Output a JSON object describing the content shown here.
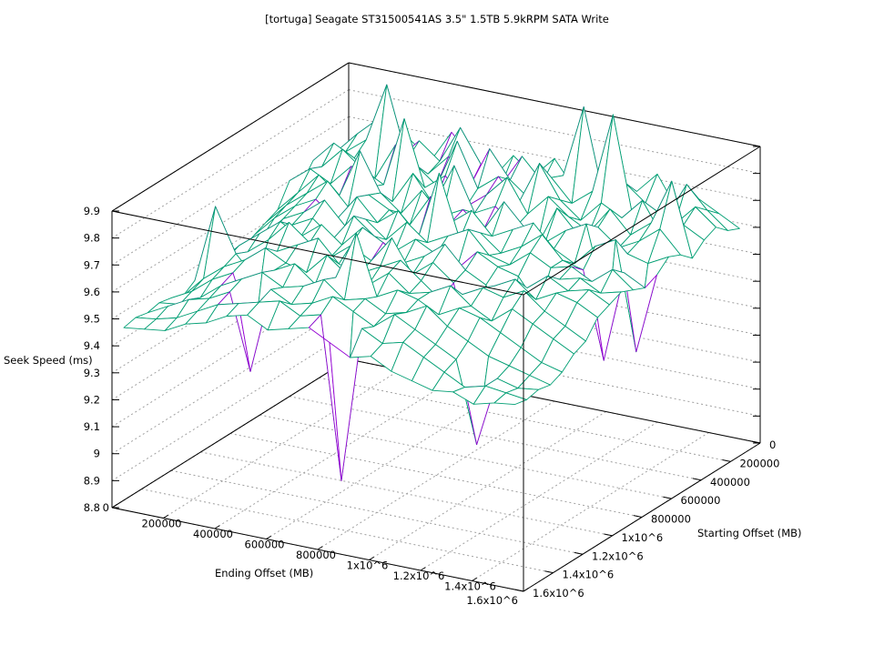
{
  "chart_data": {
    "type": "surface3d",
    "title": "[tortuga] Seagate ST31500541AS 3.5\" 1.5TB 5.9kRPM SATA Write",
    "xlabel": "Ending Offset (MB)",
    "ylabel": "Starting Offset (MB)",
    "zlabel": "Seek Speed (ms)",
    "xlim": [
      0,
      1600000
    ],
    "ylim": [
      0,
      1600000
    ],
    "zlim": [
      8.8,
      9.9
    ],
    "x_ticks": [
      "0",
      "200000",
      "400000",
      "600000",
      "800000",
      "1x10^6",
      "1.2x10^6",
      "1.4x10^6",
      "1.6x10^6"
    ],
    "y_ticks": [
      "0",
      "200000",
      "400000",
      "600000",
      "800000",
      "1x10^6",
      "1.2x10^6",
      "1.4x10^6",
      "1.6x10^6"
    ],
    "z_ticks": [
      "8.8",
      "8.9",
      "9",
      "9.1",
      "9.2",
      "9.3",
      "9.4",
      "9.5",
      "9.6",
      "9.7",
      "9.8",
      "9.9"
    ],
    "grid": true,
    "colors": {
      "surface_top": "#9400d3",
      "surface_bottom": "#009e73",
      "axis": "#000000",
      "grid": "#a0a0a0"
    },
    "x": [
      0,
      80000,
      160000,
      240000,
      320000,
      400000,
      480000,
      560000,
      640000,
      720000,
      800000,
      880000,
      960000,
      1040000,
      1120000,
      1200000,
      1280000,
      1360000,
      1440000,
      1520000
    ],
    "y": [
      0,
      80000,
      160000,
      240000,
      320000,
      400000,
      480000,
      560000,
      640000,
      720000,
      800000,
      880000,
      960000,
      1040000,
      1120000,
      1200000,
      1280000,
      1360000,
      1440000,
      1520000
    ],
    "z": [
      [
        9.55,
        9.62,
        9.58,
        9.66,
        9.6,
        9.72,
        9.64,
        9.58,
        9.68,
        9.62,
        9.7,
        9.6,
        9.66,
        9.58,
        9.64,
        9.72,
        9.6,
        9.66,
        9.62,
        9.58
      ],
      [
        9.6,
        9.68,
        9.75,
        9.62,
        9.7,
        9.64,
        9.78,
        9.66,
        9.6,
        9.72,
        9.64,
        9.68,
        9.95,
        9.62,
        9.7,
        9.64,
        9.6,
        9.74,
        9.66,
        9.6
      ],
      [
        9.58,
        9.64,
        9.7,
        9.92,
        9.66,
        9.62,
        9.7,
        9.6,
        9.76,
        9.66,
        9.6,
        9.7,
        9.62,
        9.68,
        9.98,
        9.6,
        9.66,
        9.62,
        9.7,
        9.64
      ],
      [
        9.62,
        9.7,
        9.66,
        9.6,
        9.74,
        9.68,
        9.62,
        9.8,
        9.64,
        9.7,
        9.62,
        9.78,
        9.66,
        9.6,
        9.68,
        9.64,
        9.72,
        9.6,
        9.66,
        9.62
      ],
      [
        9.56,
        9.64,
        9.72,
        9.66,
        9.62,
        9.88,
        9.64,
        9.7,
        9.6,
        9.66,
        9.74,
        9.62,
        9.7,
        9.64,
        9.6,
        9.7,
        9.62,
        9.68,
        9.85,
        9.58
      ],
      [
        9.6,
        9.66,
        9.62,
        9.7,
        9.64,
        9.6,
        9.72,
        9.62,
        9.78,
        9.62,
        9.66,
        9.6,
        9.54,
        9.7,
        9.62,
        9.66,
        9.6,
        9.64,
        9.7,
        9.62
      ],
      [
        9.52,
        9.6,
        9.68,
        9.62,
        9.8,
        9.66,
        9.6,
        9.7,
        9.62,
        9.66,
        9.6,
        9.72,
        9.64,
        9.6,
        9.66,
        9.7,
        9.4,
        9.62,
        9.6,
        9.64
      ],
      [
        9.5,
        9.58,
        9.64,
        9.7,
        9.62,
        9.68,
        9.64,
        9.6,
        9.72,
        9.64,
        9.7,
        9.62,
        9.66,
        9.7,
        9.62,
        9.58,
        9.66,
        9.7,
        9.3,
        9.6
      ],
      [
        9.48,
        9.56,
        9.62,
        9.66,
        9.6,
        9.7,
        9.62,
        9.68,
        9.6,
        9.85,
        9.62,
        9.66,
        9.6,
        9.64,
        9.7,
        9.62,
        9.6,
        9.28,
        9.62,
        9.58
      ],
      [
        9.46,
        9.52,
        9.6,
        9.64,
        9.7,
        9.62,
        9.66,
        9.6,
        9.68,
        9.62,
        9.66,
        9.7,
        9.62,
        9.6,
        9.66,
        9.62,
        9.64,
        9.6,
        9.66,
        9.6
      ],
      [
        9.45,
        9.5,
        9.58,
        9.62,
        9.66,
        9.6,
        9.7,
        9.64,
        9.6,
        9.66,
        9.62,
        9.58,
        9.66,
        9.62,
        9.6,
        9.5,
        9.62,
        9.64,
        9.6,
        9.62
      ],
      [
        9.46,
        9.54,
        9.6,
        9.66,
        9.62,
        9.68,
        9.62,
        9.7,
        9.66,
        9.6,
        9.64,
        9.7,
        9.62,
        9.58,
        9.4,
        9.6,
        9.66,
        9.62,
        9.64,
        9.6
      ],
      [
        9.44,
        9.52,
        9.56,
        9.62,
        9.7,
        9.64,
        9.6,
        9.66,
        9.62,
        9.72,
        9.6,
        9.66,
        9.6,
        9.3,
        9.62,
        9.66,
        9.6,
        9.64,
        9.62,
        9.58
      ],
      [
        9.45,
        9.74,
        9.58,
        9.5,
        9.62,
        9.66,
        9.7,
        9.62,
        9.6,
        9.64,
        9.68,
        9.62,
        9.56,
        9.6,
        9.64,
        9.62,
        9.66,
        9.6,
        9.56,
        9.52
      ],
      [
        9.42,
        9.5,
        9.56,
        9.6,
        9.66,
        9.62,
        9.6,
        9.68,
        9.62,
        9.6,
        9.66,
        9.6,
        9.62,
        9.66,
        9.6,
        9.56,
        9.62,
        9.58,
        9.54,
        9.5
      ],
      [
        9.44,
        9.48,
        9.54,
        9.58,
        9.36,
        9.62,
        9.66,
        9.6,
        9.64,
        9.82,
        9.6,
        9.64,
        9.62,
        9.58,
        9.62,
        9.6,
        9.56,
        9.52,
        9.48,
        9.46
      ],
      [
        9.45,
        9.46,
        9.5,
        9.56,
        9.6,
        9.64,
        9.6,
        9.62,
        9.66,
        9.6,
        9.62,
        9.58,
        9.6,
        9.64,
        9.58,
        9.54,
        9.5,
        9.48,
        9.46,
        9.44
      ],
      [
        9.44,
        9.48,
        9.52,
        9.54,
        9.58,
        9.3,
        9.62,
        9.58,
        9.6,
        9.64,
        9.6,
        9.56,
        9.62,
        9.58,
        9.54,
        9.5,
        9.2,
        9.46,
        9.44,
        9.45
      ],
      [
        9.45,
        9.46,
        9.48,
        9.52,
        9.56,
        9.58,
        9.6,
        9.62,
        9.58,
        9.6,
        9.0,
        9.58,
        9.54,
        9.56,
        9.52,
        9.48,
        9.44,
        9.46,
        9.45,
        9.44
      ],
      [
        9.44,
        9.45,
        9.46,
        9.5,
        9.52,
        9.56,
        9.58,
        9.54,
        9.56,
        9.58,
        9.54,
        9.5,
        9.52,
        9.48,
        9.46,
        9.44,
        9.45,
        9.42,
        9.44,
        9.45
      ]
    ]
  }
}
